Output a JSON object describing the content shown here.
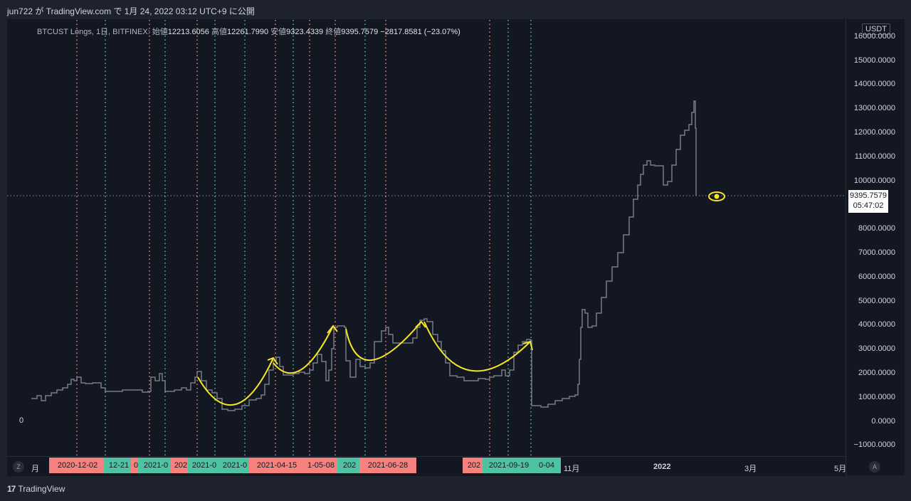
{
  "header": {
    "publish_info": "jun722 が TradingView.com で 1月 24, 2022 03:12 UTC+9 に公開"
  },
  "legend": {
    "symbol": "BTCUST Longs, 1日, BITFINEX:",
    "open_label": "始値",
    "open": "12213.6056",
    "high_label": "高値",
    "high": "12261.7990",
    "low_label": "安値",
    "low": "9323.4339",
    "close_label": "終値",
    "close": "9395.7579",
    "change": "−2817.8581 (−23.07%)"
  },
  "price_axis": {
    "unit": "USDT",
    "labels": [
      "16000.0000",
      "15000.0000",
      "14000.0000",
      "13000.0000",
      "12000.0000",
      "11000.0000",
      "10000.0000",
      "8000.0000",
      "7000.0000",
      "6000.0000",
      "5000.0000",
      "4000.0000",
      "3000.0000",
      "2000.0000",
      "1000.0000",
      "0.0000",
      "−1000.0000"
    ],
    "last_price": "9395.7579",
    "countdown": "05:47:02"
  },
  "left_zero_label": "0",
  "time_axis": {
    "labels": [
      "月",
      "11月",
      "2022",
      "3月",
      "5月"
    ],
    "date_tags": [
      {
        "text": "2020-12-02",
        "color": "#f7817c"
      },
      {
        "text": "12-21",
        "color": "#4fc3a1"
      },
      {
        "text": "0",
        "color": "#f7817c"
      },
      {
        "text": "2021-0",
        "color": "#4fc3a1"
      },
      {
        "text": "202",
        "color": "#f7817c"
      },
      {
        "text": "2021-0",
        "color": "#4fc3a1"
      },
      {
        "text": "2021-0",
        "color": "#4fc3a1"
      },
      {
        "text": "2021-04-15",
        "color": "#f7817c"
      },
      {
        "text": "1-05-08",
        "color": "#f7817c"
      },
      {
        "text": "202",
        "color": "#4fc3a1"
      },
      {
        "text": "2021-06-28",
        "color": "#f7817c"
      },
      {
        "text": "202",
        "color": "#f7817c"
      },
      {
        "text": "2021-09-19",
        "color": "#4fc3a1"
      },
      {
        "text": "0-04",
        "color": "#4fc3a1"
      }
    ],
    "z_button": "Z",
    "a_button": "A"
  },
  "footer": {
    "logo_mark": "17",
    "brand": "TradingView"
  },
  "colors": {
    "background": "#131722",
    "line": "#787b86",
    "red_marker": "#f7817c",
    "green_marker": "#4fc3a1",
    "annotation": "#f5e52a"
  },
  "chart_data": {
    "type": "line",
    "title": "BTCUST Longs, 1日, BITFINEX",
    "ylim": [
      -1000,
      16000
    ],
    "x": [
      "2020-11",
      "2020-12",
      "2021-01",
      "2021-02",
      "2021-03",
      "2021-04",
      "2021-05",
      "2021-06",
      "2021-07",
      "2021-08",
      "2021-09",
      "2021-10",
      "2021-11",
      "2021-12",
      "2022-01"
    ],
    "series": [
      {
        "name": "BTCUST Longs",
        "values": [
          1000,
          1600,
          1500,
          1700,
          700,
          2600,
          4000,
          2300,
          3900,
          1700,
          3200,
          600,
          4700,
          10800,
          9395.7579
        ]
      }
    ]
  }
}
